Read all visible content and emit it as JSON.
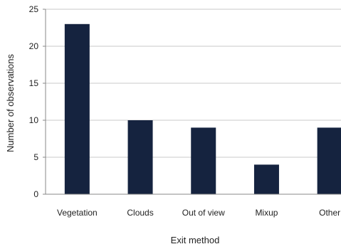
{
  "chart_data": {
    "type": "bar",
    "categories": [
      "Vegetation",
      "Clouds",
      "Out of view",
      "Mixup",
      "Other"
    ],
    "values": [
      23,
      10,
      9,
      4,
      9
    ],
    "title": "",
    "xlabel": "Exit method",
    "ylabel": "Number of observations",
    "ylim": [
      0,
      25
    ],
    "yticks": [
      0,
      5,
      10,
      15,
      20,
      25
    ],
    "grid": true,
    "legend": "none",
    "bar_color": "#15233f",
    "grid_color": "#c8c8c8"
  }
}
